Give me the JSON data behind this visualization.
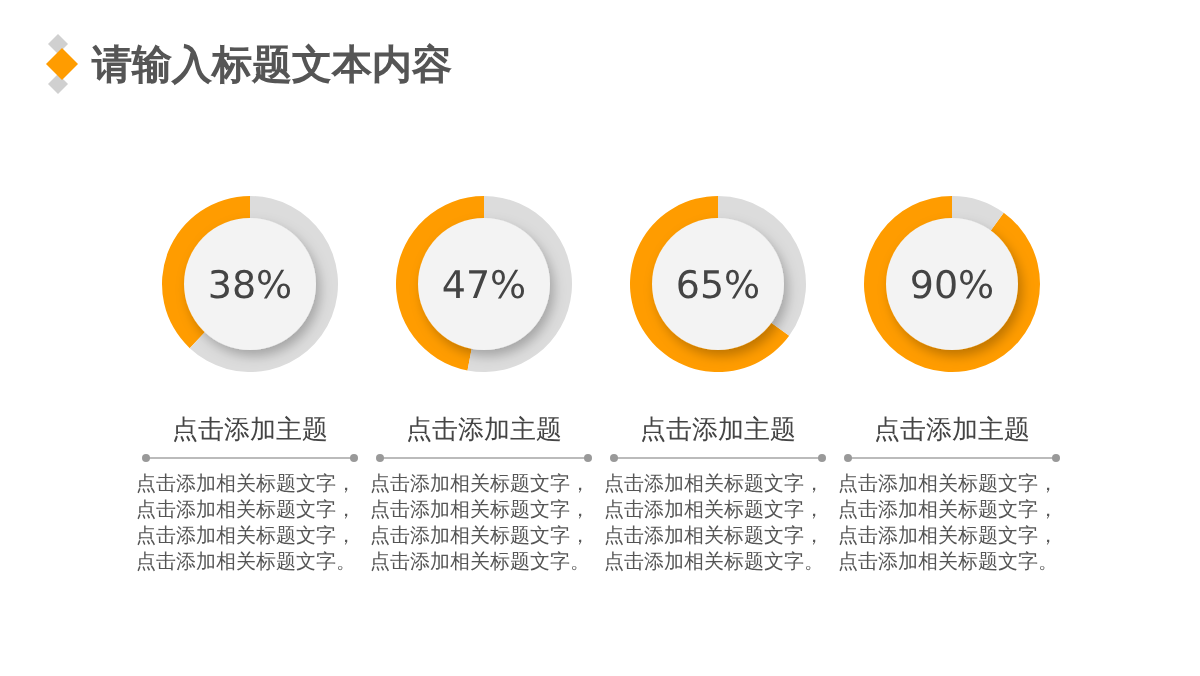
{
  "chart_data": [
    {
      "type": "other",
      "title": "请输入标题文本内容"
    },
    {
      "type": "donut",
      "title": "点击添加主题",
      "categories": [
        null,
        null
      ],
      "values": [
        38,
        62
      ],
      "colors": [
        "#ff9c00",
        "#dcdcdc"
      ],
      "annotations": [
        "38%",
        "点击添加相关标题文字，点击添加相关标题文字，点击添加相关标题文字，点击添加相关标题文字。"
      ]
    },
    {
      "type": "donut",
      "title": "点击添加主题",
      "categories": [
        null,
        null
      ],
      "values": [
        47,
        53
      ],
      "colors": [
        "#ff9c00",
        "#dcdcdc"
      ],
      "annotations": [
        "47%",
        "点击添加相关标题文字，点击添加相关标题文字，点击添加相关标题文字，点击添加相关标题文字。"
      ]
    },
    {
      "type": "donut",
      "title": "点击添加主题",
      "categories": [
        null,
        null
      ],
      "values": [
        65,
        35
      ],
      "colors": [
        "#ff9c00",
        "#dcdcdc"
      ],
      "annotations": [
        "65%",
        "点击添加相关标题文字，点击添加相关标题文字，点击添加相关标题文字，点击添加相关标题文字。"
      ]
    },
    {
      "type": "donut",
      "title": "点击添加主题",
      "categories": [
        null,
        null
      ],
      "values": [
        90,
        10
      ],
      "colors": [
        "#ff9c00",
        "#dcdcdc"
      ],
      "annotations": [
        "90%",
        "点击添加相关标题文字，点击添加相关标题文字，点击添加相关标题文字，点击添加相关标题文字。"
      ]
    }
  ]
}
